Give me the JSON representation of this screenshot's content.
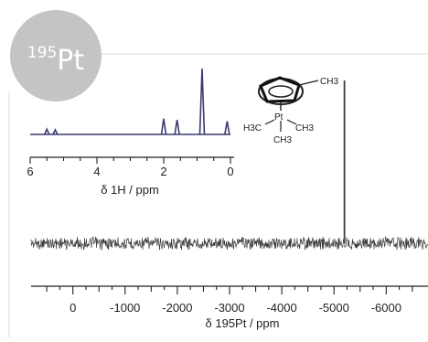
{
  "badge": {
    "label": "195Pt",
    "mass": "195",
    "element": "Pt",
    "color": "#c4c4c4"
  },
  "molecule": {
    "methyl_top": "CH3",
    "methyl_left": "H3C",
    "methyl_right": "CH3",
    "methyl_bottom": "CH3",
    "metal": "Pt"
  },
  "chart_data": [
    {
      "type": "line",
      "panel": "inset",
      "xlabel": "δ 1H / ppm",
      "xlim": [
        6.0,
        0.0
      ],
      "x_ticks": [
        6,
        4,
        2,
        0
      ],
      "line_color": "#3a3a72",
      "peaks": [
        {
          "x": 5.5,
          "height": 0.08
        },
        {
          "x": 5.25,
          "height": 0.07
        },
        {
          "x": 2.0,
          "height": 0.24
        },
        {
          "x": 1.6,
          "height": 0.22
        },
        {
          "x": 0.85,
          "height": 1.0
        },
        {
          "x": 0.1,
          "height": 0.2
        }
      ]
    },
    {
      "type": "line",
      "panel": "main",
      "xlabel": "δ 195Pt / ppm",
      "xlim": [
        800,
        -6800
      ],
      "x_ticks": [
        0,
        -1000,
        -2000,
        -3000,
        -4000,
        -5000,
        -6000
      ],
      "line_color": "#3c3c3c",
      "noise_level": "high",
      "peaks": [
        {
          "x": -5200,
          "height": 1.0
        }
      ]
    }
  ]
}
